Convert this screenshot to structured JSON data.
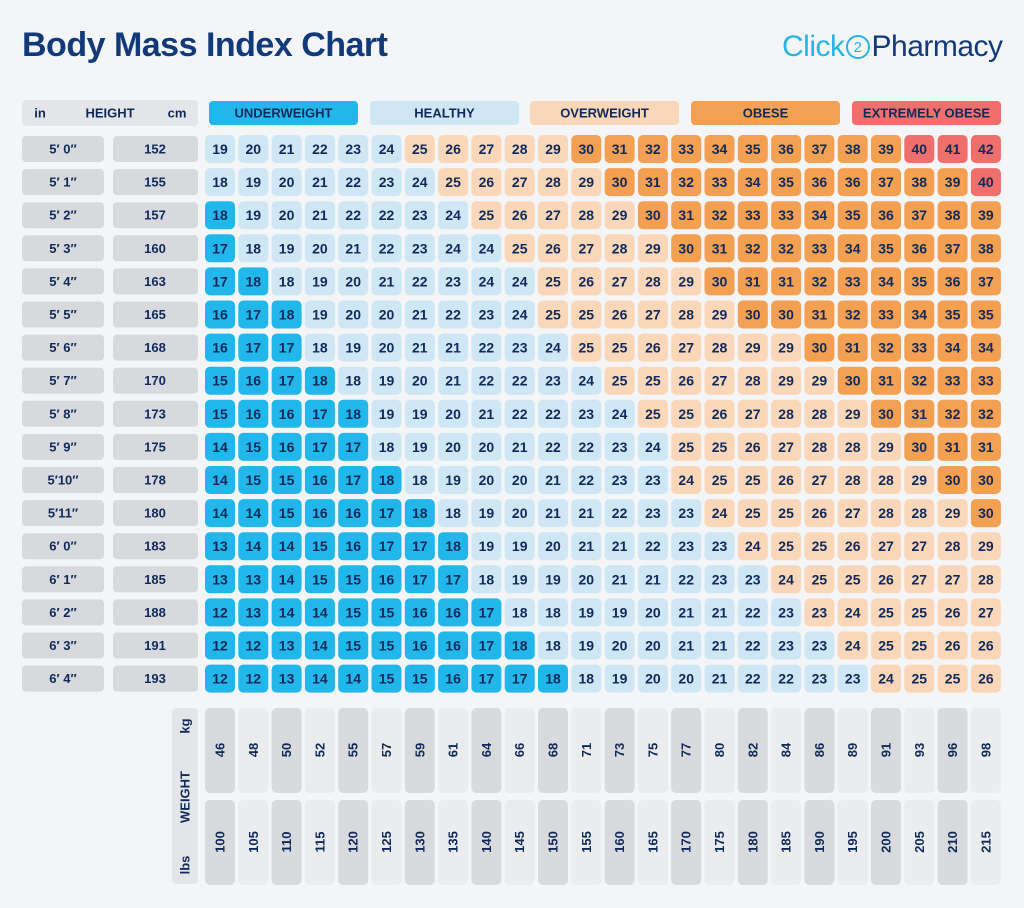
{
  "header": {
    "title": "Body Mass Index Chart",
    "logo_part1": "Click",
    "logo_mark": "2",
    "logo_part2": "Pharmacy"
  },
  "colors": {
    "underweight": "#22b7ea",
    "healthy": "#cfe7f5",
    "overweight": "#fbd7b9",
    "obese": "#f3a053",
    "extremely_obese": "#ef6f6c",
    "row_label_bg": "#d8d9dc",
    "weight_col_dark": "#d9dadd",
    "weight_col_light": "#ebecee",
    "text": "#0f2a5a"
  },
  "chart_data": {
    "type": "table",
    "title": "Body Mass Index Chart",
    "height_header": {
      "in": "in",
      "label": "HEIGHT",
      "cm": "cm"
    },
    "weight_header": {
      "label": "WEIGHT",
      "kg": "kg",
      "lbs": "lbs"
    },
    "categories": [
      {
        "key": "underweight",
        "label": "UNDERWEIGHT"
      },
      {
        "key": "healthy",
        "label": "HEALTHY"
      },
      {
        "key": "overweight",
        "label": "OVERWEIGHT"
      },
      {
        "key": "obese",
        "label": "OBESE"
      },
      {
        "key": "extremely_obese",
        "label": "EXTREMELY OBESE"
      }
    ],
    "heights_in": [
      "5′ 0″",
      "5′ 1″",
      "5′ 2″",
      "5′ 3″",
      "5′ 4″",
      "5′ 5″",
      "5′ 6″",
      "5′ 7″",
      "5′ 8″",
      "5′ 9″",
      "5′10″",
      "5′11″",
      "6′ 0″",
      "6′ 1″",
      "6′ 2″",
      "6′ 3″",
      "6′ 4″"
    ],
    "heights_cm": [
      152,
      155,
      157,
      160,
      163,
      165,
      168,
      170,
      173,
      175,
      178,
      180,
      183,
      185,
      188,
      191,
      193
    ],
    "weights_kg": [
      46,
      48,
      50,
      52,
      55,
      57,
      59,
      61,
      64,
      66,
      68,
      71,
      73,
      75,
      77,
      80,
      82,
      84,
      86,
      89,
      91,
      93,
      96,
      98
    ],
    "weights_lbs": [
      100,
      105,
      110,
      115,
      120,
      125,
      130,
      135,
      140,
      145,
      150,
      155,
      160,
      165,
      170,
      175,
      180,
      185,
      190,
      195,
      200,
      205,
      210,
      215
    ],
    "bmi": [
      [
        19,
        20,
        21,
        22,
        23,
        24,
        25,
        26,
        27,
        28,
        29,
        30,
        31,
        32,
        33,
        34,
        35,
        36,
        37,
        38,
        39,
        40,
        41,
        42
      ],
      [
        18,
        19,
        20,
        21,
        22,
        23,
        24,
        25,
        26,
        27,
        28,
        29,
        30,
        31,
        32,
        33,
        34,
        35,
        36,
        36,
        37,
        38,
        39,
        40
      ],
      [
        18,
        19,
        20,
        21,
        22,
        22,
        23,
        24,
        25,
        26,
        27,
        28,
        29,
        30,
        31,
        32,
        33,
        33,
        34,
        35,
        36,
        37,
        38,
        39
      ],
      [
        17,
        18,
        19,
        20,
        21,
        22,
        23,
        24,
        24,
        25,
        26,
        27,
        28,
        29,
        30,
        31,
        32,
        32,
        33,
        34,
        35,
        36,
        37,
        38
      ],
      [
        17,
        18,
        18,
        19,
        20,
        21,
        22,
        23,
        24,
        24,
        25,
        26,
        27,
        28,
        29,
        30,
        31,
        31,
        32,
        33,
        34,
        35,
        36,
        37
      ],
      [
        16,
        17,
        18,
        19,
        20,
        20,
        21,
        22,
        23,
        24,
        25,
        25,
        26,
        27,
        28,
        29,
        30,
        30,
        31,
        32,
        33,
        34,
        35,
        35
      ],
      [
        16,
        17,
        17,
        18,
        19,
        20,
        21,
        21,
        22,
        23,
        24,
        25,
        25,
        26,
        27,
        28,
        29,
        29,
        30,
        31,
        32,
        33,
        34,
        34
      ],
      [
        15,
        16,
        17,
        18,
        18,
        19,
        20,
        21,
        22,
        22,
        23,
        24,
        25,
        25,
        26,
        27,
        28,
        29,
        29,
        30,
        31,
        32,
        33,
        33
      ],
      [
        15,
        16,
        16,
        17,
        18,
        19,
        19,
        20,
        21,
        22,
        22,
        23,
        24,
        25,
        25,
        26,
        27,
        28,
        28,
        29,
        30,
        31,
        32,
        32
      ],
      [
        14,
        15,
        16,
        17,
        17,
        18,
        19,
        20,
        20,
        21,
        22,
        22,
        23,
        24,
        25,
        25,
        26,
        27,
        28,
        28,
        29,
        30,
        31,
        31
      ],
      [
        14,
        15,
        15,
        16,
        17,
        18,
        18,
        19,
        20,
        20,
        21,
        22,
        23,
        23,
        24,
        25,
        25,
        26,
        27,
        28,
        28,
        29,
        30,
        30
      ],
      [
        14,
        14,
        15,
        16,
        16,
        17,
        18,
        18,
        19,
        20,
        21,
        21,
        22,
        23,
        23,
        24,
        25,
        25,
        26,
        27,
        28,
        28,
        29,
        30
      ],
      [
        13,
        14,
        14,
        15,
        16,
        17,
        17,
        18,
        19,
        19,
        20,
        21,
        21,
        22,
        23,
        23,
        24,
        25,
        25,
        26,
        27,
        27,
        28,
        29
      ],
      [
        13,
        13,
        14,
        15,
        15,
        16,
        17,
        17,
        18,
        19,
        19,
        20,
        21,
        21,
        22,
        23,
        23,
        24,
        25,
        25,
        26,
        27,
        27,
        28
      ],
      [
        12,
        13,
        14,
        14,
        15,
        15,
        16,
        16,
        17,
        18,
        18,
        19,
        19,
        20,
        21,
        21,
        22,
        23,
        23,
        24,
        25,
        25,
        26,
        27
      ],
      [
        12,
        12,
        13,
        14,
        15,
        15,
        16,
        16,
        17,
        18,
        18,
        19,
        20,
        20,
        21,
        21,
        22,
        23,
        23,
        24,
        25,
        25,
        26,
        26
      ],
      [
        12,
        12,
        13,
        14,
        14,
        15,
        15,
        16,
        17,
        17,
        18,
        18,
        19,
        20,
        20,
        21,
        22,
        22,
        23,
        23,
        24,
        25,
        25,
        26
      ]
    ],
    "classification": [
      [
        "h",
        "h",
        "h",
        "h",
        "h",
        "h",
        "o",
        "o",
        "o",
        "o",
        "o",
        "b",
        "b",
        "b",
        "b",
        "b",
        "b",
        "b",
        "b",
        "b",
        "b",
        "x",
        "x",
        "x"
      ],
      [
        "h",
        "h",
        "h",
        "h",
        "h",
        "h",
        "h",
        "o",
        "o",
        "o",
        "o",
        "o",
        "b",
        "b",
        "b",
        "b",
        "b",
        "b",
        "b",
        "b",
        "b",
        "b",
        "b",
        "x"
      ],
      [
        "u",
        "h",
        "h",
        "h",
        "h",
        "h",
        "h",
        "h",
        "o",
        "o",
        "o",
        "o",
        "o",
        "b",
        "b",
        "b",
        "b",
        "b",
        "b",
        "b",
        "b",
        "b",
        "b",
        "b"
      ],
      [
        "u",
        "h",
        "h",
        "h",
        "h",
        "h",
        "h",
        "h",
        "h",
        "o",
        "o",
        "o",
        "o",
        "o",
        "b",
        "b",
        "b",
        "b",
        "b",
        "b",
        "b",
        "b",
        "b",
        "b"
      ],
      [
        "u",
        "u",
        "h",
        "h",
        "h",
        "h",
        "h",
        "h",
        "h",
        "h",
        "o",
        "o",
        "o",
        "o",
        "o",
        "b",
        "b",
        "b",
        "b",
        "b",
        "b",
        "b",
        "b",
        "b"
      ],
      [
        "u",
        "u",
        "u",
        "h",
        "h",
        "h",
        "h",
        "h",
        "h",
        "h",
        "o",
        "o",
        "o",
        "o",
        "o",
        "o",
        "b",
        "b",
        "b",
        "b",
        "b",
        "b",
        "b",
        "b"
      ],
      [
        "u",
        "u",
        "u",
        "h",
        "h",
        "h",
        "h",
        "h",
        "h",
        "h",
        "h",
        "o",
        "o",
        "o",
        "o",
        "o",
        "o",
        "o",
        "b",
        "b",
        "b",
        "b",
        "b",
        "b"
      ],
      [
        "u",
        "u",
        "u",
        "u",
        "h",
        "h",
        "h",
        "h",
        "h",
        "h",
        "h",
        "h",
        "o",
        "o",
        "o",
        "o",
        "o",
        "o",
        "o",
        "b",
        "b",
        "b",
        "b",
        "b"
      ],
      [
        "u",
        "u",
        "u",
        "u",
        "u",
        "h",
        "h",
        "h",
        "h",
        "h",
        "h",
        "h",
        "h",
        "o",
        "o",
        "o",
        "o",
        "o",
        "o",
        "o",
        "b",
        "b",
        "b",
        "b"
      ],
      [
        "u",
        "u",
        "u",
        "u",
        "u",
        "h",
        "h",
        "h",
        "h",
        "h",
        "h",
        "h",
        "h",
        "h",
        "o",
        "o",
        "o",
        "o",
        "o",
        "o",
        "o",
        "b",
        "b",
        "b"
      ],
      [
        "u",
        "u",
        "u",
        "u",
        "u",
        "u",
        "h",
        "h",
        "h",
        "h",
        "h",
        "h",
        "h",
        "h",
        "o",
        "o",
        "o",
        "o",
        "o",
        "o",
        "o",
        "o",
        "b",
        "b"
      ],
      [
        "u",
        "u",
        "u",
        "u",
        "u",
        "u",
        "u",
        "h",
        "h",
        "h",
        "h",
        "h",
        "h",
        "h",
        "h",
        "o",
        "o",
        "o",
        "o",
        "o",
        "o",
        "o",
        "o",
        "b"
      ],
      [
        "u",
        "u",
        "u",
        "u",
        "u",
        "u",
        "u",
        "u",
        "h",
        "h",
        "h",
        "h",
        "h",
        "h",
        "h",
        "h",
        "o",
        "o",
        "o",
        "o",
        "o",
        "o",
        "o",
        "o"
      ],
      [
        "u",
        "u",
        "u",
        "u",
        "u",
        "u",
        "u",
        "u",
        "h",
        "h",
        "h",
        "h",
        "h",
        "h",
        "h",
        "h",
        "h",
        "o",
        "o",
        "o",
        "o",
        "o",
        "o",
        "o"
      ],
      [
        "u",
        "u",
        "u",
        "u",
        "u",
        "u",
        "u",
        "u",
        "u",
        "h",
        "h",
        "h",
        "h",
        "h",
        "h",
        "h",
        "h",
        "h",
        "o",
        "o",
        "o",
        "o",
        "o",
        "o"
      ],
      [
        "u",
        "u",
        "u",
        "u",
        "u",
        "u",
        "u",
        "u",
        "u",
        "u",
        "h",
        "h",
        "h",
        "h",
        "h",
        "h",
        "h",
        "h",
        "h",
        "o",
        "o",
        "o",
        "o",
        "o"
      ],
      [
        "u",
        "u",
        "u",
        "u",
        "u",
        "u",
        "u",
        "u",
        "u",
        "u",
        "u",
        "h",
        "h",
        "h",
        "h",
        "h",
        "h",
        "h",
        "h",
        "h",
        "o",
        "o",
        "o",
        "o"
      ]
    ]
  }
}
